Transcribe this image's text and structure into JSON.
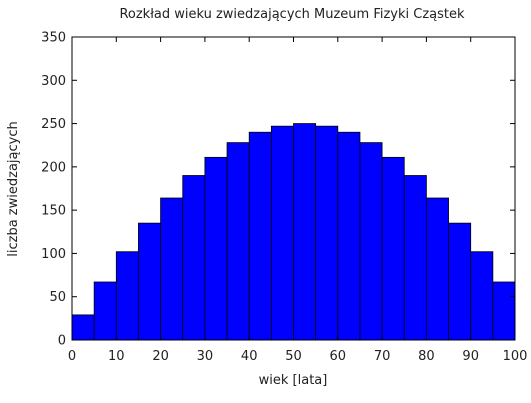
{
  "chart_data": {
    "type": "bar",
    "title": "Rozkład wieku zwiedzających Muzeum Fizyki Cząstek",
    "xlabel": "wiek [lata]",
    "ylabel": "liczba zwiedzających",
    "bin_width": 5,
    "bin_starts": [
      0,
      5,
      10,
      15,
      20,
      25,
      30,
      35,
      40,
      45,
      50,
      55,
      60,
      65,
      70,
      75,
      80,
      85,
      90,
      95
    ],
    "values": [
      29,
      67,
      102,
      135,
      164,
      190,
      211,
      228,
      240,
      247,
      250,
      247,
      240,
      228,
      211,
      190,
      164,
      135,
      102,
      67
    ],
    "xlim": [
      0,
      100
    ],
    "ylim": [
      0,
      350
    ],
    "xticks": [
      0,
      10,
      20,
      30,
      40,
      50,
      60,
      70,
      80,
      90,
      100
    ],
    "yticks": [
      0,
      50,
      100,
      150,
      200,
      250,
      300,
      350
    ],
    "bar_color": "#0000ff",
    "grid": false
  }
}
